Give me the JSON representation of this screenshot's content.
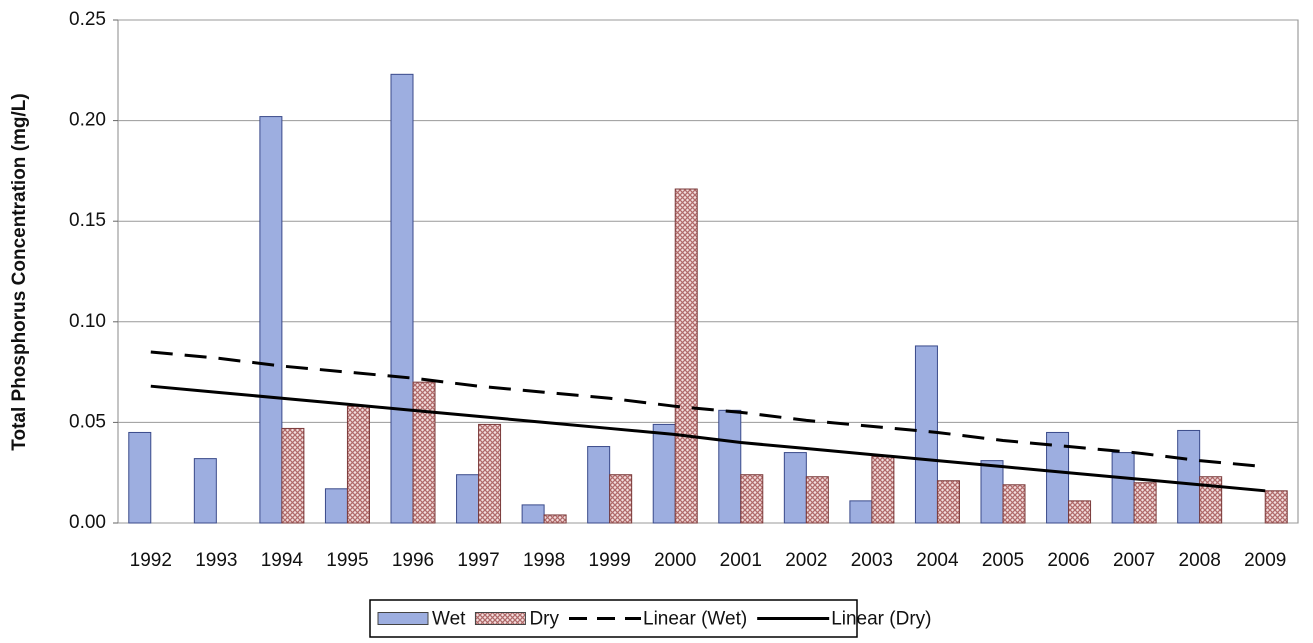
{
  "chart_data": {
    "type": "bar",
    "y_label": "Total Phosphorus Concentration (mg/L)",
    "categories": [
      "1992",
      "1993",
      "1994",
      "1995",
      "1996",
      "1997",
      "1998",
      "1999",
      "2000",
      "2001",
      "2002",
      "2003",
      "2004",
      "2005",
      "2006",
      "2007",
      "2008",
      "2009"
    ],
    "series": [
      {
        "name": "Wet",
        "type": "bar",
        "color": "#9daee0",
        "values": [
          0.045,
          0.032,
          0.202,
          0.017,
          0.223,
          0.024,
          0.009,
          0.038,
          0.049,
          0.056,
          0.035,
          0.011,
          0.088,
          0.031,
          0.045,
          0.035,
          0.046,
          null
        ]
      },
      {
        "name": "Dry",
        "type": "bar",
        "color": "#b06a6a",
        "pattern": "crosshatch",
        "values": [
          null,
          null,
          0.047,
          0.058,
          0.07,
          0.049,
          0.004,
          0.024,
          0.166,
          0.024,
          0.023,
          0.033,
          0.021,
          0.019,
          0.011,
          0.02,
          0.023,
          0.016
        ]
      },
      {
        "name": "Linear (Wet)",
        "type": "line",
        "color": "#000000",
        "dash": "dashed",
        "values": [
          0.085,
          0.082,
          0.078,
          0.075,
          0.072,
          0.068,
          0.065,
          0.062,
          0.058,
          0.055,
          0.051,
          0.048,
          0.045,
          0.041,
          0.038,
          0.035,
          0.031,
          0.028
        ]
      },
      {
        "name": "Linear (Dry)",
        "type": "line",
        "color": "#000000",
        "dash": "solid",
        "values": [
          0.068,
          0.065,
          0.062,
          0.059,
          0.056,
          0.053,
          0.05,
          0.047,
          0.044,
          0.04,
          0.037,
          0.034,
          0.031,
          0.028,
          0.025,
          0.022,
          0.019,
          0.016
        ]
      }
    ],
    "ylim": [
      0,
      0.25
    ],
    "yticks": [
      {
        "value": 0,
        "label": "0.00"
      },
      {
        "value": 0.05,
        "label": "0.05"
      },
      {
        "value": 0.1,
        "label": "0.10"
      },
      {
        "value": 0.15,
        "label": "0.15"
      },
      {
        "value": 0.2,
        "label": "0.20"
      },
      {
        "value": 0.25,
        "label": "0.25"
      }
    ],
    "grid": true,
    "legend": "bottom"
  }
}
